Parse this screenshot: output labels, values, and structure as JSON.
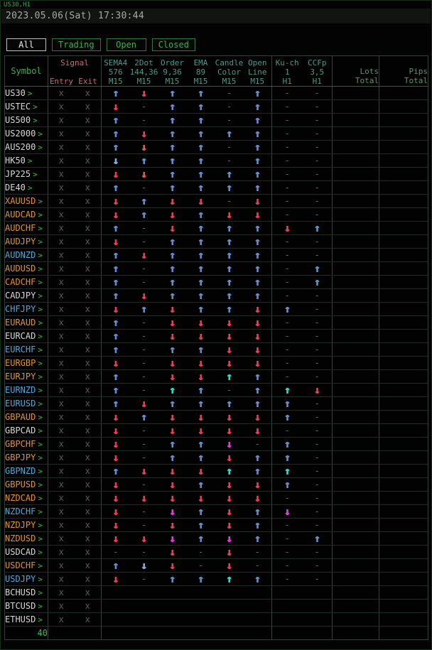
{
  "chart": {
    "symbol_period": "US30,H1",
    "datetime": "2023.05.06(Sat) 17:30:44"
  },
  "tabs": [
    {
      "label": "All",
      "active": true
    },
    {
      "label": "Trading",
      "active": false
    },
    {
      "label": "Open",
      "active": false
    },
    {
      "label": "Closed",
      "active": false
    }
  ],
  "table": {
    "header": {
      "symbol": "Symbol",
      "signal": "Signal",
      "entry": "Entry",
      "exit": "Exit",
      "indicators": [
        {
          "name": "SEMA4",
          "param": "576",
          "tf": "M15"
        },
        {
          "name": "2Dot",
          "param": "144,36",
          "tf": "M15"
        },
        {
          "name": "Order",
          "param": "9,36",
          "tf": "M15"
        },
        {
          "name": "EMA",
          "param": "89",
          "tf": "M15"
        },
        {
          "name": "Candle",
          "param": "Color",
          "tf": "M15"
        },
        {
          "name": "Open",
          "param": "Line",
          "tf": "M15"
        },
        {
          "name": "Ku-ch",
          "param": "1",
          "tf": "H1"
        },
        {
          "name": "CCFp",
          "param": "3,5",
          "tf": "H1"
        }
      ],
      "lots": {
        "line1": "Lots",
        "line2": "Total"
      },
      "pips": {
        "line1": "Pips",
        "line2": "Total"
      }
    },
    "rows": [
      {
        "symbol": "US30",
        "color": "white",
        "entry": "x",
        "exit": "x",
        "signals": [
          "up-blue",
          "down-red",
          "up-blue",
          "up-blue",
          "dash",
          "up-blue",
          "dash",
          "dash"
        ]
      },
      {
        "symbol": "USTEC",
        "color": "white",
        "entry": "x",
        "exit": "x",
        "signals": [
          "down-red",
          "dash",
          "up-blue",
          "up-blue",
          "dash",
          "up-blue",
          "dash",
          "dash"
        ]
      },
      {
        "symbol": "US500",
        "color": "white",
        "entry": "x",
        "exit": "x",
        "signals": [
          "up-blue",
          "dash",
          "up-blue",
          "up-blue",
          "dash",
          "up-blue",
          "dash",
          "dash"
        ]
      },
      {
        "symbol": "US2000",
        "color": "white",
        "entry": "x",
        "exit": "x",
        "signals": [
          "up-blue",
          "down-red",
          "up-blue",
          "up-blue",
          "up-blue",
          "up-blue",
          "dash",
          "dash"
        ]
      },
      {
        "symbol": "AUS200",
        "color": "white",
        "entry": "x",
        "exit": "x",
        "signals": [
          "up-blue",
          "down-orange",
          "up-blue",
          "up-blue",
          "dash",
          "up-blue",
          "dash",
          "dash"
        ]
      },
      {
        "symbol": "HK50",
        "color": "white",
        "entry": "x",
        "exit": "x",
        "signals": [
          "down-blue",
          "up-blue",
          "up-blue",
          "up-blue",
          "dash",
          "up-blue",
          "dash",
          "dash"
        ]
      },
      {
        "symbol": "JP225",
        "color": "white",
        "entry": "x",
        "exit": "x",
        "signals": [
          "down-red",
          "down-orange",
          "up-blue",
          "up-blue",
          "up-blue",
          "up-blue",
          "dash",
          "dash"
        ]
      },
      {
        "symbol": "DE40",
        "color": "white",
        "entry": "x",
        "exit": "x",
        "signals": [
          "up-blue",
          "dash",
          "up-blue",
          "up-blue",
          "up-blue",
          "up-blue",
          "dash",
          "dash"
        ]
      },
      {
        "symbol": "XAUUSD",
        "color": "orange",
        "entry": "x",
        "exit": "x",
        "signals": [
          "down-red",
          "up-blue",
          "down-red",
          "down-red",
          "dash",
          "down-red",
          "dash",
          "dash"
        ]
      },
      {
        "symbol": "AUDCAD",
        "color": "orange",
        "entry": "x",
        "exit": "x",
        "signals": [
          "down-red",
          "up-blue",
          "down-red",
          "up-blue",
          "down-red",
          "down-red",
          "dash",
          "dash"
        ]
      },
      {
        "symbol": "AUDCHF",
        "color": "orange",
        "entry": "x",
        "exit": "x",
        "signals": [
          "up-blue",
          "dash",
          "down-red",
          "up-blue",
          "up-blue",
          "up-blue",
          "down-red",
          "up-blue"
        ]
      },
      {
        "symbol": "AUDJPY",
        "color": "orange",
        "entry": "x",
        "exit": "x",
        "signals": [
          "down-red",
          "dash",
          "up-blue",
          "up-blue",
          "up-blue",
          "up-blue",
          "dash",
          "dash"
        ]
      },
      {
        "symbol": "AUDNZD",
        "color": "blue",
        "entry": "x",
        "exit": "x",
        "signals": [
          "up-blue",
          "down-red",
          "up-blue",
          "up-blue",
          "up-blue",
          "up-blue",
          "dash",
          "dash"
        ]
      },
      {
        "symbol": "AUDUSD",
        "color": "orange",
        "entry": "x",
        "exit": "x",
        "signals": [
          "up-blue",
          "dash",
          "up-blue",
          "up-blue",
          "up-blue",
          "up-blue",
          "dash",
          "up-blue"
        ]
      },
      {
        "symbol": "CADCHF",
        "color": "orange",
        "entry": "x",
        "exit": "x",
        "signals": [
          "up-blue",
          "dash",
          "up-blue",
          "up-blue",
          "up-blue",
          "up-blue",
          "dash",
          "up-blue"
        ]
      },
      {
        "symbol": "CADJPY",
        "color": "white",
        "entry": "x",
        "exit": "x",
        "signals": [
          "up-blue",
          "down-red",
          "up-blue",
          "up-blue",
          "up-blue",
          "up-blue",
          "dash",
          "dash"
        ]
      },
      {
        "symbol": "CHFJPY",
        "color": "blue",
        "entry": "x",
        "exit": "x",
        "signals": [
          "down-red",
          "up-blue",
          "down-red",
          "up-blue",
          "up-blue",
          "down-red",
          "up-blue",
          "dash"
        ]
      },
      {
        "symbol": "EURAUD",
        "color": "orange",
        "entry": "x",
        "exit": "x",
        "signals": [
          "up-blue",
          "dash",
          "down-red",
          "down-red",
          "down-red",
          "down-red",
          "dash",
          "dash"
        ]
      },
      {
        "symbol": "EURCAD",
        "color": "white",
        "entry": "x",
        "exit": "x",
        "signals": [
          "up-blue",
          "dash",
          "down-red",
          "down-red",
          "down-red",
          "down-red",
          "dash",
          "dash"
        ]
      },
      {
        "symbol": "EURCHF",
        "color": "blue",
        "entry": "x",
        "exit": "x",
        "signals": [
          "up-blue",
          "dash",
          "up-blue",
          "up-blue",
          "down-red",
          "down-red",
          "dash",
          "dash"
        ]
      },
      {
        "symbol": "EURGBP",
        "color": "orange",
        "entry": "x",
        "exit": "x",
        "signals": [
          "down-red",
          "dash",
          "down-red",
          "down-red",
          "down-red",
          "down-red",
          "dash",
          "dash"
        ]
      },
      {
        "symbol": "EURJPY",
        "color": "orange",
        "entry": "x",
        "exit": "x",
        "signals": [
          "up-blue",
          "dash",
          "down-red",
          "down-red",
          "up-cyan",
          "up-blue",
          "dash",
          "dash"
        ]
      },
      {
        "symbol": "EURNZD",
        "color": "blue",
        "entry": "x",
        "exit": "x",
        "signals": [
          "up-blue",
          "dash",
          "up-cyan",
          "up-blue",
          "dash",
          "up-blue",
          "up-cyan",
          "down-red"
        ]
      },
      {
        "symbol": "EURUSD",
        "color": "blue",
        "entry": "x",
        "exit": "x",
        "signals": [
          "up-blue",
          "down-red",
          "up-blue",
          "up-blue",
          "up-blue",
          "up-blue",
          "up-blue",
          "dash"
        ]
      },
      {
        "symbol": "GBPAUD",
        "color": "orange",
        "entry": "x",
        "exit": "x",
        "signals": [
          "down-red",
          "up-blue",
          "down-red",
          "down-red",
          "down-red",
          "down-red",
          "up-blue",
          "dash"
        ]
      },
      {
        "symbol": "GBPCAD",
        "color": "white",
        "entry": "x",
        "exit": "x",
        "signals": [
          "down-red",
          "dash",
          "down-red",
          "down-red",
          "down-red",
          "down-red",
          "dash",
          "dash"
        ]
      },
      {
        "symbol": "GBPCHF",
        "color": "orange",
        "entry": "x",
        "exit": "x",
        "signals": [
          "down-red",
          "dash",
          "up-blue",
          "up-blue",
          "down-magenta",
          "dash",
          "up-blue",
          "dash"
        ]
      },
      {
        "symbol": "GBPJPY",
        "color": "orange",
        "entry": "x",
        "exit": "x",
        "signals": [
          "down-red",
          "dash",
          "up-blue",
          "up-blue",
          "down-red",
          "up-blue",
          "up-blue",
          "dash"
        ]
      },
      {
        "symbol": "GBPNZD",
        "color": "blue",
        "entry": "x",
        "exit": "x",
        "signals": [
          "up-blue",
          "down-red",
          "down-red",
          "down-red",
          "up-cyan",
          "up-blue",
          "up-cyan",
          "dash"
        ]
      },
      {
        "symbol": "GBPUSD",
        "color": "orange",
        "entry": "x",
        "exit": "x",
        "signals": [
          "down-red",
          "dash",
          "down-red",
          "up-blue",
          "down-red",
          "down-red",
          "up-blue",
          "dash"
        ]
      },
      {
        "symbol": "NZDCAD",
        "color": "orange",
        "entry": "x",
        "exit": "x",
        "signals": [
          "down-red",
          "down-red",
          "down-red",
          "down-red",
          "down-red",
          "down-red",
          "dash",
          "dash"
        ]
      },
      {
        "symbol": "NZDCHF",
        "color": "blue",
        "entry": "x",
        "exit": "x",
        "signals": [
          "down-red",
          "dash",
          "down-magenta",
          "up-blue",
          "down-red",
          "up-blue",
          "down-magenta",
          "dash"
        ]
      },
      {
        "symbol": "NZDJPY",
        "color": "orange",
        "entry": "x",
        "exit": "x",
        "signals": [
          "down-red",
          "dash",
          "down-red",
          "up-blue",
          "down-red",
          "up-blue",
          "dash",
          "dash"
        ]
      },
      {
        "symbol": "NZDUSD",
        "color": "orange",
        "entry": "x",
        "exit": "x",
        "signals": [
          "down-red",
          "down-red",
          "down-magenta",
          "up-blue",
          "down-magenta",
          "up-blue",
          "dash",
          "up-blue"
        ]
      },
      {
        "symbol": "USDCAD",
        "color": "white",
        "entry": "x",
        "exit": "x",
        "signals": [
          "dash",
          "dash",
          "down-red",
          "dash",
          "down-red",
          "dash",
          "dash",
          "dash"
        ]
      },
      {
        "symbol": "USDCHF",
        "color": "orange",
        "entry": "x",
        "exit": "x",
        "signals": [
          "up-blue",
          "down-blue",
          "down-red",
          "dash",
          "down-red",
          "dash",
          "dash",
          "dash"
        ]
      },
      {
        "symbol": "USDJPY",
        "color": "blue",
        "entry": "x",
        "exit": "x",
        "signals": [
          "down-red",
          "dash",
          "up-blue",
          "up-blue",
          "up-cyan",
          "up-blue",
          "dash",
          "dash"
        ]
      },
      {
        "symbol": "BCHUSD",
        "color": "white",
        "entry": "x",
        "exit": "x",
        "signals": [
          "",
          "",
          "",
          "",
          "",
          "",
          "",
          ""
        ]
      },
      {
        "symbol": "BTCUSD",
        "color": "white",
        "entry": "x",
        "exit": "x",
        "signals": [
          "",
          "",
          "",
          "",
          "",
          "",
          "",
          ""
        ]
      },
      {
        "symbol": "ETHUSD",
        "color": "white",
        "entry": "x",
        "exit": "x",
        "signals": [
          "",
          "",
          "",
          "",
          "",
          "",
          "",
          ""
        ]
      }
    ],
    "footer_count": "40"
  },
  "colors": {
    "accent_green": "#35c23f",
    "header_symbol": "#35b53a",
    "header_signal": "#c76b7b",
    "header_indicator": "#4a9a88",
    "header_totals": "#5f926f",
    "tab_green": "#3fae4a",
    "tab_active_text": "#eaeaea",
    "datetime_gray": "#a8a8a8",
    "symbol_white": "#d6d6d6",
    "symbol_orange": "#e0922f",
    "symbol_blue": "#4fa8d8",
    "signal_up_blue": "#5b8fd0",
    "signal_down_blue": "#7aaede",
    "signal_down_red": "#ef3b57",
    "signal_down_orange": "#e2622e",
    "signal_up_cyan": "#17e0cf",
    "signal_down_magenta": "#e23ae2",
    "signal_dash": "#6a6a6a",
    "x_mark": "#5c5c5c"
  }
}
